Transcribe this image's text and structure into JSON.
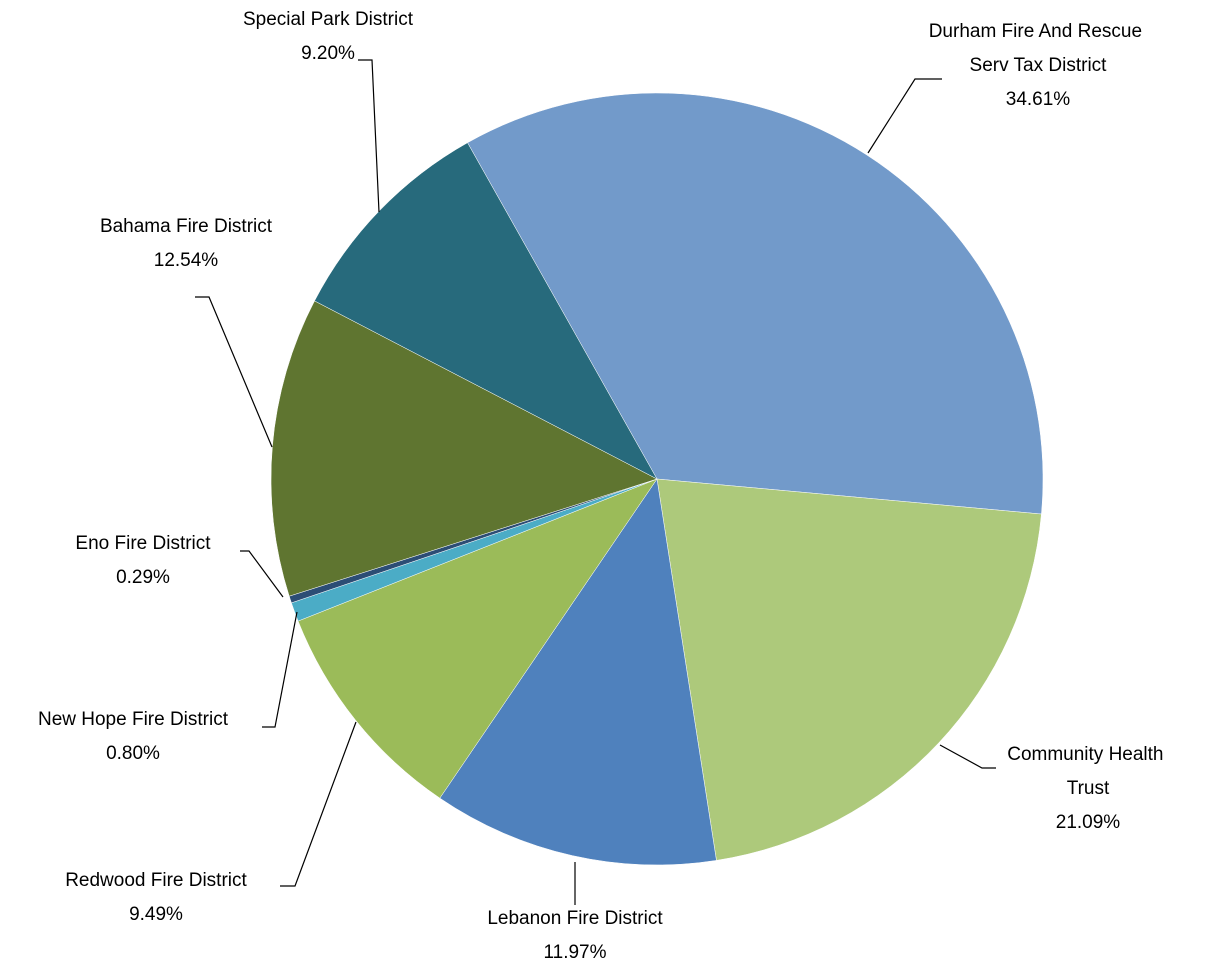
{
  "chart_data": {
    "type": "pie",
    "categories": [
      "Durham Fire And Rescue Serv Tax District",
      "Community Health Trust",
      "Lebanon Fire District",
      "Redwood Fire District",
      "New Hope Fire District",
      "Eno Fire District",
      "Bahama Fire District",
      "Special Park District"
    ],
    "values": [
      34.61,
      21.09,
      11.97,
      9.49,
      0.8,
      0.29,
      12.54,
      9.2
    ],
    "value_labels": [
      "34.61%",
      "21.09%",
      "11.97%",
      "9.49%",
      "0.80%",
      "0.29%",
      "12.54%",
      "9.20%"
    ],
    "colors": [
      "#729aca",
      "#adc97b",
      "#4f81bd",
      "#9bbb59",
      "#4bacc6",
      "#2c4d75",
      "#5f7530",
      "#276a7c"
    ]
  }
}
